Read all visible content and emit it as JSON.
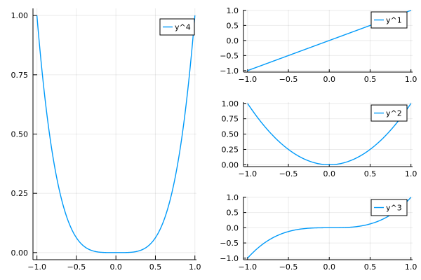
{
  "colors": {
    "series": "#009af9"
  },
  "chart_data": [
    {
      "type": "line",
      "title": "",
      "xlabel": "",
      "ylabel": "",
      "xlim": [
        -1.05,
        1.02
      ],
      "ylim": [
        -0.03,
        1.03
      ],
      "xticks": [
        -1.0,
        -0.5,
        0.0,
        0.5,
        1.0
      ],
      "yticks": [
        0.0,
        0.25,
        0.5,
        0.75,
        1.0
      ],
      "xtick_labels": [
        "−1.0",
        "−0.5",
        "0.0",
        "0.5",
        "1.0"
      ],
      "ytick_labels": [
        "0.00",
        "0.25",
        "0.50",
        "0.75",
        "1.00"
      ],
      "grid": true,
      "legend_position": "top-right",
      "series": [
        {
          "name": "y^4",
          "x_range": [
            -1,
            1
          ],
          "function": "x^4"
        }
      ]
    },
    {
      "type": "line",
      "title": "",
      "xlabel": "",
      "ylabel": "",
      "xlim": [
        -1.05,
        1.02
      ],
      "ylim": [
        -1.05,
        1.02
      ],
      "xticks": [
        -1.0,
        -0.5,
        0.0,
        0.5,
        1.0
      ],
      "yticks": [
        -1.0,
        -0.5,
        0.0,
        0.5,
        1.0
      ],
      "xtick_labels": [
        "−1.0",
        "−0.5",
        "0.0",
        "0.5",
        "1.0"
      ],
      "ytick_labels": [
        "−1.0",
        "−0.5",
        "0.0",
        "0.5",
        "1.0"
      ],
      "grid": true,
      "legend_position": "top-right",
      "series": [
        {
          "name": "y^1",
          "x_range": [
            -1,
            1
          ],
          "function": "x"
        }
      ]
    },
    {
      "type": "line",
      "title": "",
      "xlabel": "",
      "ylabel": "",
      "xlim": [
        -1.05,
        1.02
      ],
      "ylim": [
        -0.03,
        1.02
      ],
      "xticks": [
        -1.0,
        -0.5,
        0.0,
        0.5,
        1.0
      ],
      "yticks": [
        0.0,
        0.25,
        0.5,
        0.75,
        1.0
      ],
      "xtick_labels": [
        "−1.0",
        "−0.5",
        "0.0",
        "0.5",
        "1.0"
      ],
      "ytick_labels": [
        "0.00",
        "0.25",
        "0.50",
        "0.75",
        "1.00"
      ],
      "grid": true,
      "legend_position": "top-right",
      "series": [
        {
          "name": "y^2",
          "x_range": [
            -1,
            1
          ],
          "function": "x^2"
        }
      ]
    },
    {
      "type": "line",
      "title": "",
      "xlabel": "",
      "ylabel": "",
      "xlim": [
        -1.05,
        1.02
      ],
      "ylim": [
        -1.05,
        1.02
      ],
      "xticks": [
        -1.0,
        -0.5,
        0.0,
        0.5,
        1.0
      ],
      "yticks": [
        -1.0,
        -0.5,
        0.0,
        0.5,
        1.0
      ],
      "xtick_labels": [
        "−1.0",
        "−0.5",
        "0.0",
        "0.5",
        "1.0"
      ],
      "ytick_labels": [
        "−1.0",
        "−0.5",
        "0.0",
        "0.5",
        "1.0"
      ],
      "grid": true,
      "legend_position": "top-right",
      "series": [
        {
          "name": "y^3",
          "x_range": [
            -1,
            1
          ],
          "function": "x^3"
        }
      ]
    }
  ]
}
